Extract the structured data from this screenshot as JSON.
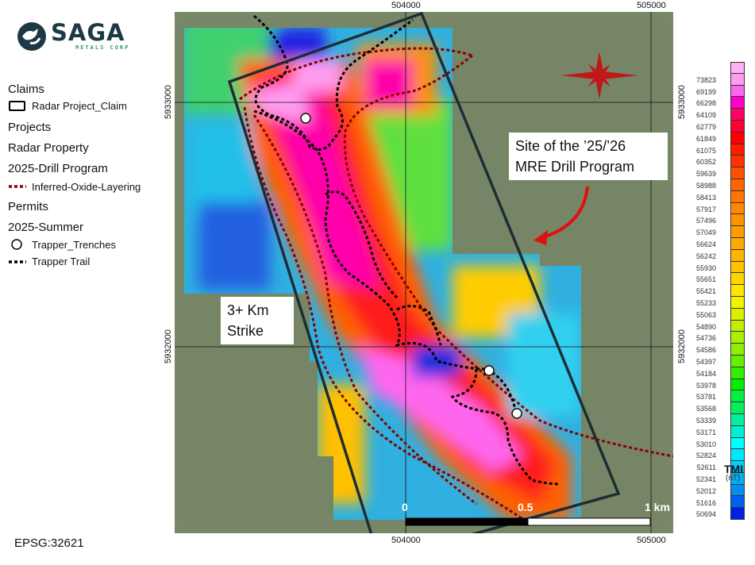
{
  "logo": {
    "name": "SAGA",
    "tagline": "METALS CORP",
    "brand_color": "#1d3a44",
    "tagline_color": "#3a9a70"
  },
  "legend": {
    "items": [
      {
        "label": "Claims",
        "kind": "group"
      },
      {
        "label": "Radar Project_Claim",
        "kind": "symbol",
        "icon": "rectangle-outline-icon"
      },
      {
        "label": "Projects",
        "kind": "group"
      },
      {
        "label": "Radar Property",
        "kind": "group"
      },
      {
        "label": "2025-Drill Program",
        "kind": "group"
      },
      {
        "label": "Inferred-Oxide-Layering",
        "kind": "symbol",
        "icon": "red-dotted-line-icon",
        "color": "#8b0000"
      },
      {
        "label": "Permits",
        "kind": "group"
      },
      {
        "label": "2025-Summer",
        "kind": "group"
      },
      {
        "label": "Trapper_Trenches",
        "kind": "symbol",
        "icon": "circle-icon"
      },
      {
        "label": "Trapper Trail",
        "kind": "symbol",
        "icon": "black-dotted-line-icon",
        "color": "#000000"
      }
    ]
  },
  "crs": "EPSG:32621",
  "map": {
    "easting_labels": [
      "504000",
      "505000"
    ],
    "northing_labels": [
      "5933000",
      "5932000"
    ],
    "callouts": {
      "drill": "Site of the ’25/’26 MRE Drill Program",
      "strike_line1": "3+ Km",
      "strike_line2": "Strike"
    },
    "scalebar": {
      "labels": [
        "0",
        "0.5",
        "1 km"
      ]
    }
  },
  "colorbar": {
    "title": "TMI",
    "unit": "(nT)",
    "values": [
      "73823",
      "69199",
      "66298",
      "64109",
      "62779",
      "61849",
      "61075",
      "60352",
      "59639",
      "58988",
      "58413",
      "57917",
      "57496",
      "57049",
      "56624",
      "56242",
      "55930",
      "55651",
      "55421",
      "55233",
      "55063",
      "54890",
      "54736",
      "54586",
      "54397",
      "54184",
      "53978",
      "53781",
      "53568",
      "53339",
      "53171",
      "53010",
      "52824",
      "52611",
      "52341",
      "52012",
      "51616",
      "50694"
    ],
    "colors": [
      "#ff9cf0",
      "#ff66ee",
      "#ff00cc",
      "#ff0066",
      "#ff0033",
      "#ff0000",
      "#ff1a00",
      "#ff3300",
      "#ff5000",
      "#ff6600",
      "#ff7700",
      "#ff8800",
      "#ff9000",
      "#ff9c00",
      "#ffaa00",
      "#ffb400",
      "#ffc400",
      "#ffd400",
      "#ffe600",
      "#f2f200",
      "#d8f000",
      "#c4f000",
      "#aaf000",
      "#8cf000",
      "#66f000",
      "#33f000",
      "#00f000",
      "#00f040",
      "#00f060",
      "#00f0a0",
      "#00f0d0",
      "#00ffff",
      "#00e8ff",
      "#00d0ff",
      "#00b0f0",
      "#0090f0",
      "#0060f0",
      "#0020e8"
    ]
  }
}
